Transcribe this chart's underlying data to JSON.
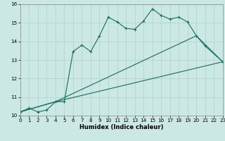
{
  "xlabel": "Humidex (Indice chaleur)",
  "xlim": [
    0,
    23
  ],
  "ylim": [
    10,
    16
  ],
  "bg_color": "#cce8e4",
  "grid_color": "#aed0cb",
  "line_color": "#1a6b60",
  "line1_x": [
    0,
    1,
    2,
    3,
    4,
    5,
    6,
    7,
    8,
    9,
    10,
    11,
    12,
    13,
    14,
    15,
    16,
    17,
    18,
    19,
    20,
    21,
    23
  ],
  "line1_y": [
    10.2,
    10.4,
    10.2,
    10.3,
    10.75,
    10.75,
    13.45,
    13.8,
    13.45,
    14.3,
    15.3,
    15.05,
    14.7,
    14.65,
    15.1,
    15.75,
    15.4,
    15.2,
    15.3,
    15.05,
    14.3,
    13.75,
    12.9
  ],
  "line2_x": [
    0,
    4,
    20,
    23
  ],
  "line2_y": [
    10.2,
    10.75,
    14.3,
    12.9
  ],
  "line3_x": [
    0,
    4,
    23
  ],
  "line3_y": [
    10.2,
    10.75,
    12.9
  ],
  "yticks": [
    10,
    11,
    12,
    13,
    14,
    15,
    16
  ],
  "xticks": [
    0,
    1,
    2,
    3,
    4,
    5,
    6,
    7,
    8,
    9,
    10,
    11,
    12,
    13,
    14,
    15,
    16,
    17,
    18,
    19,
    20,
    21,
    22,
    23
  ],
  "xlabel_fontsize": 6.0,
  "tick_fontsize": 5.2
}
